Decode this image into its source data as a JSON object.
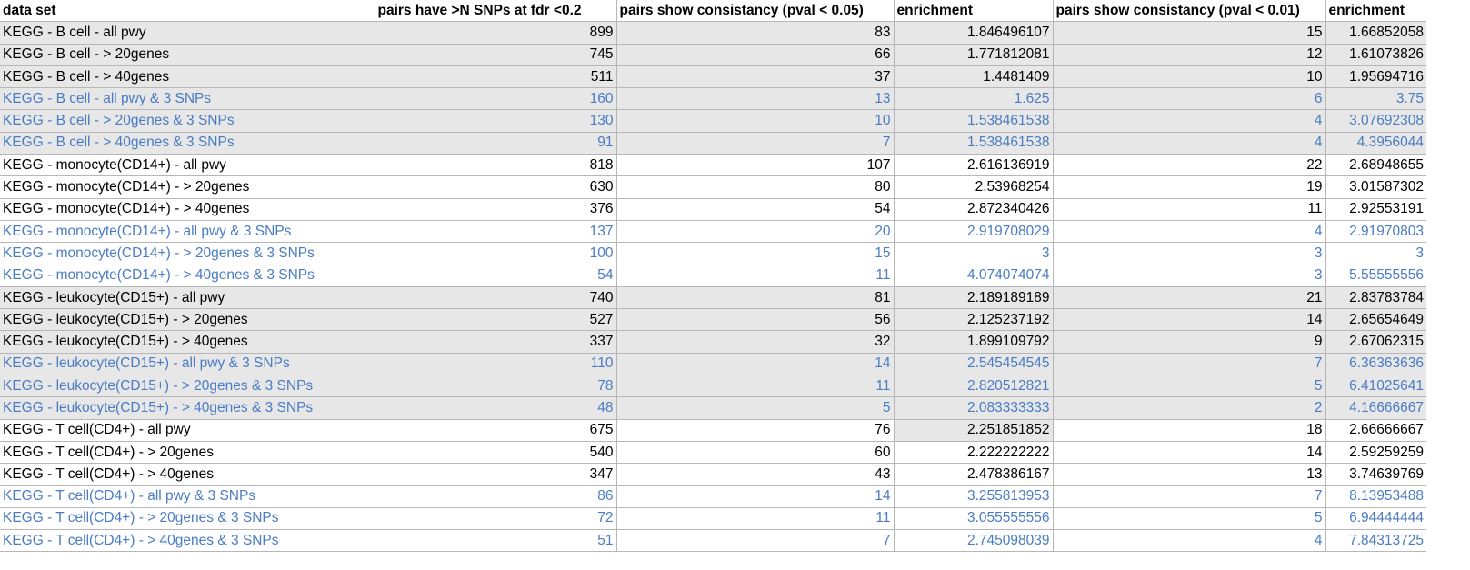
{
  "headers": [
    "data set",
    "pairs have >N SNPs at fdr <0.2",
    "pairs show consistancy (pval < 0.05)",
    "enrichment",
    "pairs show consistancy (pval < 0.01)",
    "enrichment"
  ],
  "colors": {
    "blue_text": "#4a7cc3",
    "shade": "#e7e7e7"
  },
  "rows": [
    {
      "cells": [
        "KEGG - B cell - all pwy",
        "899",
        "83",
        "1.846496107",
        "15",
        "1.66852058"
      ],
      "shade": true,
      "blue": false
    },
    {
      "cells": [
        "KEGG - B cell - > 20genes",
        "745",
        "66",
        "1.771812081",
        "12",
        "1.61073826"
      ],
      "shade": true,
      "blue": false
    },
    {
      "cells": [
        "KEGG - B cell - > 40genes",
        "511",
        "37",
        "1.4481409",
        "10",
        "1.95694716"
      ],
      "shade": true,
      "blue": false
    },
    {
      "cells": [
        "KEGG - B cell - all pwy & 3 SNPs",
        "160",
        "13",
        "1.625",
        "6",
        "3.75"
      ],
      "shade": true,
      "blue": true
    },
    {
      "cells": [
        "KEGG - B cell - > 20genes & 3 SNPs",
        "130",
        "10",
        "1.538461538",
        "4",
        "3.07692308"
      ],
      "shade": true,
      "blue": true
    },
    {
      "cells": [
        "KEGG - B cell - > 40genes & 3 SNPs",
        "91",
        "7",
        "1.538461538",
        "4",
        "4.3956044"
      ],
      "shade": true,
      "blue": true
    },
    {
      "cells": [
        "KEGG - monocyte(CD14+) - all pwy",
        "818",
        "107",
        "2.616136919",
        "22",
        "2.68948655"
      ],
      "shade": false,
      "blue": false
    },
    {
      "cells": [
        "KEGG - monocyte(CD14+) - > 20genes",
        "630",
        "80",
        "2.53968254",
        "19",
        "3.01587302"
      ],
      "shade": false,
      "blue": false
    },
    {
      "cells": [
        "KEGG - monocyte(CD14+) - > 40genes",
        "376",
        "54",
        "2.872340426",
        "11",
        "2.92553191"
      ],
      "shade": false,
      "blue": false
    },
    {
      "cells": [
        "KEGG - monocyte(CD14+) - all pwy & 3 SNPs",
        "137",
        "20",
        "2.919708029",
        "4",
        "2.91970803"
      ],
      "shade": false,
      "blue": true
    },
    {
      "cells": [
        "KEGG - monocyte(CD14+) - > 20genes & 3 SNPs",
        "100",
        "15",
        "3",
        "3",
        "3"
      ],
      "shade": false,
      "blue": true
    },
    {
      "cells": [
        "KEGG - monocyte(CD14+) - > 40genes & 3 SNPs",
        "54",
        "11",
        "4.074074074",
        "3",
        "5.55555556"
      ],
      "shade": false,
      "blue": true
    },
    {
      "cells": [
        "KEGG - leukocyte(CD15+) - all pwy",
        "740",
        "81",
        "2.189189189",
        "21",
        "2.83783784"
      ],
      "shade": true,
      "blue": false
    },
    {
      "cells": [
        "KEGG - leukocyte(CD15+) - > 20genes",
        "527",
        "56",
        "2.125237192",
        "14",
        "2.65654649"
      ],
      "shade": true,
      "blue": false
    },
    {
      "cells": [
        "KEGG - leukocyte(CD15+) - > 40genes",
        "337",
        "32",
        "1.899109792",
        "9",
        "2.67062315"
      ],
      "shade": true,
      "blue": false
    },
    {
      "cells": [
        "KEGG - leukocyte(CD15+) - all pwy & 3 SNPs",
        "110",
        "14",
        "2.545454545",
        "7",
        "6.36363636"
      ],
      "shade": true,
      "blue": true
    },
    {
      "cells": [
        "KEGG - leukocyte(CD15+) - > 20genes & 3 SNPs",
        "78",
        "11",
        "2.820512821",
        "5",
        "6.41025641"
      ],
      "shade": true,
      "blue": true
    },
    {
      "cells": [
        "KEGG - leukocyte(CD15+) - > 40genes & 3 SNPs",
        "48",
        "5",
        "2.083333333",
        "2",
        "4.16666667"
      ],
      "shade": true,
      "blue": true
    },
    {
      "cells": [
        "KEGG - T cell(CD4+) - all pwy",
        "675",
        "76",
        "2.251851852",
        "18",
        "2.66666667"
      ],
      "shade": false,
      "blue": false,
      "selected_col": 3
    },
    {
      "cells": [
        "KEGG - T cell(CD4+) - > 20genes",
        "540",
        "60",
        "2.222222222",
        "14",
        "2.59259259"
      ],
      "shade": false,
      "blue": false
    },
    {
      "cells": [
        "KEGG - T cell(CD4+) - > 40genes",
        "347",
        "43",
        "2.478386167",
        "13",
        "3.74639769"
      ],
      "shade": false,
      "blue": false
    },
    {
      "cells": [
        "KEGG - T cell(CD4+) - all pwy & 3 SNPs",
        "86",
        "14",
        "3.255813953",
        "7",
        "8.13953488"
      ],
      "shade": false,
      "blue": true
    },
    {
      "cells": [
        "KEGG - T cell(CD4+) - > 20genes & 3 SNPs",
        "72",
        "11",
        "3.055555556",
        "5",
        "6.94444444"
      ],
      "shade": false,
      "blue": true
    },
    {
      "cells": [
        "KEGG - T cell(CD4+) - > 40genes & 3 SNPs",
        "51",
        "7",
        "2.745098039",
        "4",
        "7.84313725"
      ],
      "shade": false,
      "blue": true
    }
  ]
}
